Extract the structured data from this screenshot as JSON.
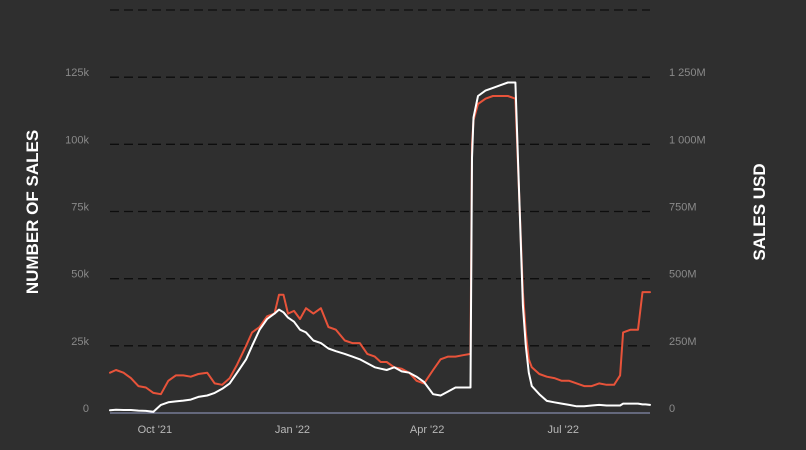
{
  "chart_data": {
    "type": "line",
    "title": "",
    "ylabel_left": "NUMBER OF SALES",
    "ylabel_right": "SALES USD",
    "ylim_left": [
      0,
      150000
    ],
    "ylim_right": [
      0,
      1500000000
    ],
    "left_ticks": [
      {
        "value": 0,
        "label": "0"
      },
      {
        "value": 25000,
        "label": "25k"
      },
      {
        "value": 50000,
        "label": "50k"
      },
      {
        "value": 75000,
        "label": "75k"
      },
      {
        "value": 100000,
        "label": "100k"
      },
      {
        "value": 125000,
        "label": "125k"
      }
    ],
    "right_ticks": [
      {
        "value": 0,
        "label": "0"
      },
      {
        "value": 250000000,
        "label": "250M"
      },
      {
        "value": 500000000,
        "label": "500M"
      },
      {
        "value": 750000000,
        "label": "750M"
      },
      {
        "value": 1000000000,
        "label": "1 000M"
      },
      {
        "value": 1250000000,
        "label": "1 250M"
      }
    ],
    "grid": true,
    "xlim": [
      "2021-09-01",
      "2022-08-28"
    ],
    "x_ticks": [
      {
        "date": "2021-10-01",
        "label": "Oct '21"
      },
      {
        "date": "2022-01-01",
        "label": "Jan '22"
      },
      {
        "date": "2022-04-01",
        "label": "Apr '22"
      },
      {
        "date": "2022-07-01",
        "label": "Jul '22"
      }
    ],
    "series": [
      {
        "name": "",
        "axis": "left",
        "color": "#e8533a",
        "x": [
          "2021-09-01",
          "2021-09-05",
          "2021-09-10",
          "2021-09-15",
          "2021-09-20",
          "2021-09-25",
          "2021-09-30",
          "2021-10-05",
          "2021-10-10",
          "2021-10-15",
          "2021-10-20",
          "2021-10-25",
          "2021-10-30",
          "2021-11-05",
          "2021-11-10",
          "2021-11-15",
          "2021-11-20",
          "2021-11-25",
          "2021-12-01",
          "2021-12-05",
          "2021-12-10",
          "2021-12-15",
          "2021-12-20",
          "2021-12-23",
          "2021-12-26",
          "2021-12-29",
          "2022-01-02",
          "2022-01-06",
          "2022-01-10",
          "2022-01-15",
          "2022-01-20",
          "2022-01-25",
          "2022-01-30",
          "2022-02-05",
          "2022-02-10",
          "2022-02-15",
          "2022-02-20",
          "2022-02-25",
          "2022-03-01",
          "2022-03-05",
          "2022-03-10",
          "2022-03-15",
          "2022-03-20",
          "2022-03-25",
          "2022-03-30",
          "2022-04-05",
          "2022-04-10",
          "2022-04-15",
          "2022-04-20",
          "2022-04-25",
          "2022-04-30",
          "2022-05-01",
          "2022-05-02",
          "2022-05-05",
          "2022-05-10",
          "2022-05-15",
          "2022-05-20",
          "2022-05-25",
          "2022-05-30",
          "2022-06-04",
          "2022-06-06",
          "2022-06-08",
          "2022-06-10",
          "2022-06-15",
          "2022-06-20",
          "2022-06-25",
          "2022-06-30",
          "2022-07-05",
          "2022-07-10",
          "2022-07-15",
          "2022-07-20",
          "2022-07-25",
          "2022-07-30",
          "2022-08-04",
          "2022-08-08",
          "2022-08-10",
          "2022-08-15",
          "2022-08-20",
          "2022-08-23",
          "2022-08-25",
          "2022-08-28"
        ],
        "values": [
          15000,
          16000,
          15000,
          13000,
          10000,
          9500,
          7500,
          7000,
          12000,
          14000,
          14000,
          13500,
          14500,
          15000,
          11000,
          10500,
          13000,
          18000,
          25000,
          30000,
          32000,
          36000,
          37000,
          44000,
          44000,
          37000,
          38000,
          35000,
          39000,
          37000,
          39000,
          32000,
          31000,
          27000,
          26000,
          26000,
          22000,
          21000,
          19000,
          19000,
          17000,
          16500,
          15000,
          12000,
          11000,
          16000,
          20000,
          21000,
          21000,
          21500,
          22000,
          100000,
          109000,
          115000,
          117000,
          118000,
          118000,
          118000,
          117000,
          45000,
          30000,
          20000,
          17000,
          14500,
          13500,
          13000,
          12000,
          12000,
          11000,
          10000,
          10000,
          11000,
          10500,
          10500,
          14000,
          30000,
          31000,
          31000,
          45000,
          45000,
          45000
        ]
      },
      {
        "name": "",
        "axis": "right",
        "color": "#ffffff",
        "x": [
          "2021-09-01",
          "2021-09-05",
          "2021-09-10",
          "2021-09-15",
          "2021-09-20",
          "2021-09-25",
          "2021-09-30",
          "2021-10-05",
          "2021-10-10",
          "2021-10-15",
          "2021-10-20",
          "2021-10-25",
          "2021-10-30",
          "2021-11-05",
          "2021-11-10",
          "2021-11-15",
          "2021-11-20",
          "2021-11-25",
          "2021-12-01",
          "2021-12-05",
          "2021-12-10",
          "2021-12-15",
          "2021-12-20",
          "2021-12-23",
          "2021-12-26",
          "2021-12-29",
          "2022-01-02",
          "2022-01-06",
          "2022-01-10",
          "2022-01-15",
          "2022-01-20",
          "2022-01-25",
          "2022-01-30",
          "2022-02-05",
          "2022-02-10",
          "2022-02-15",
          "2022-02-20",
          "2022-02-25",
          "2022-03-01",
          "2022-03-05",
          "2022-03-10",
          "2022-03-15",
          "2022-03-20",
          "2022-03-25",
          "2022-03-30",
          "2022-04-05",
          "2022-04-10",
          "2022-04-15",
          "2022-04-20",
          "2022-04-25",
          "2022-04-30",
          "2022-05-01",
          "2022-05-02",
          "2022-05-05",
          "2022-05-10",
          "2022-05-15",
          "2022-05-20",
          "2022-05-25",
          "2022-05-30",
          "2022-06-04",
          "2022-06-06",
          "2022-06-08",
          "2022-06-10",
          "2022-06-15",
          "2022-06-20",
          "2022-06-25",
          "2022-06-30",
          "2022-07-05",
          "2022-07-10",
          "2022-07-15",
          "2022-07-20",
          "2022-07-25",
          "2022-07-30",
          "2022-08-04",
          "2022-08-08",
          "2022-08-10",
          "2022-08-15",
          "2022-08-20",
          "2022-08-23",
          "2022-08-25",
          "2022-08-28"
        ],
        "values": [
          10000000,
          12000000,
          11000000,
          11000000,
          9000000,
          8000000,
          5000000,
          30000000,
          40000000,
          43000000,
          46000000,
          50000000,
          60000000,
          65000000,
          75000000,
          90000000,
          110000000,
          150000000,
          200000000,
          250000000,
          310000000,
          350000000,
          370000000,
          385000000,
          375000000,
          355000000,
          340000000,
          310000000,
          300000000,
          270000000,
          260000000,
          240000000,
          230000000,
          220000000,
          210000000,
          200000000,
          185000000,
          170000000,
          165000000,
          160000000,
          170000000,
          155000000,
          150000000,
          135000000,
          115000000,
          70000000,
          65000000,
          80000000,
          95000000,
          95000000,
          95000000,
          950000000,
          1100000000,
          1180000000,
          1200000000,
          1210000000,
          1220000000,
          1230000000,
          1230000000,
          400000000,
          250000000,
          150000000,
          100000000,
          70000000,
          45000000,
          40000000,
          35000000,
          30000000,
          25000000,
          25000000,
          28000000,
          30000000,
          28000000,
          28000000,
          28000000,
          35000000,
          35000000,
          35000000,
          32000000,
          32000000,
          30000000
        ]
      }
    ]
  }
}
